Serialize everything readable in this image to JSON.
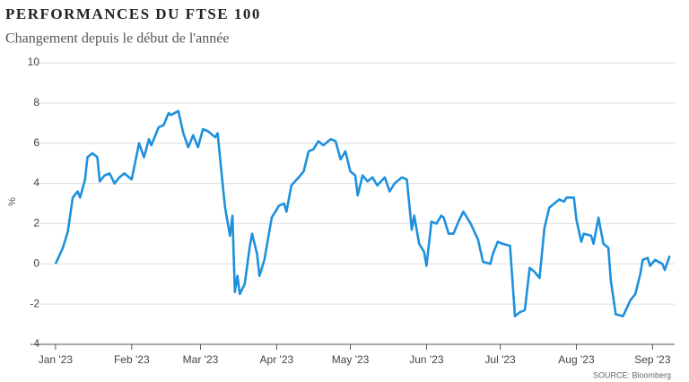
{
  "chart_data": {
    "type": "line",
    "title": "PERFORMANCES DU FTSE 100",
    "subtitle": "Changement depuis le début de l'année",
    "y_label": "%",
    "source": "SOURCE: Bloomberg",
    "x": [
      0,
      3,
      5,
      7,
      9,
      10,
      12,
      13,
      15,
      17,
      18,
      20,
      22,
      24,
      26,
      28,
      31,
      34,
      36,
      38,
      39,
      42,
      44,
      46,
      47,
      50,
      52,
      54,
      56,
      58,
      60,
      62,
      65,
      66,
      68,
      69,
      71,
      72,
      73,
      74,
      75,
      77,
      79,
      80,
      82,
      83,
      85,
      88,
      91,
      93,
      94,
      96,
      99,
      101,
      103,
      105,
      107,
      109,
      112,
      114,
      116,
      118,
      120,
      122,
      123,
      125,
      127,
      129,
      131,
      134,
      136,
      138,
      141,
      143,
      145,
      146,
      148,
      150,
      151,
      153,
      155,
      157,
      158,
      160,
      162,
      164,
      166,
      169,
      172,
      174,
      177,
      178,
      180,
      182,
      185,
      187,
      189,
      191,
      193,
      195,
      197,
      199,
      201,
      203,
      205,
      207,
      208,
      211,
      212,
      214,
      215,
      218,
      219,
      221,
      223,
      225,
      226,
      228,
      231,
      234,
      236,
      238,
      239,
      241,
      242,
      244,
      247,
      248,
      250
    ],
    "series": [
      {
        "name": "FTSE 100",
        "color": "#1e90dc",
        "values": [
          0,
          0.8,
          1.6,
          3.3,
          3.6,
          3.3,
          4.2,
          5.3,
          5.5,
          5.3,
          4.1,
          4.4,
          4.5,
          4.0,
          4.3,
          4.5,
          4.2,
          6.0,
          5.3,
          6.2,
          5.9,
          6.8,
          6.9,
          7.5,
          7.4,
          7.6,
          6.5,
          5.8,
          6.4,
          5.8,
          6.7,
          6.6,
          6.3,
          6.5,
          4.0,
          2.8,
          1.4,
          2.4,
          -1.4,
          -0.6,
          -1.5,
          -1.0,
          0.8,
          1.5,
          0.5,
          -0.6,
          0.2,
          2.3,
          2.9,
          3.0,
          2.6,
          3.9,
          4.3,
          4.6,
          5.6,
          5.7,
          6.1,
          5.9,
          6.2,
          6.1,
          5.2,
          5.6,
          4.6,
          4.4,
          3.4,
          4.4,
          4.1,
          4.3,
          3.9,
          4.3,
          3.6,
          4.0,
          4.3,
          4.2,
          1.7,
          2.4,
          1.0,
          0.6,
          -0.1,
          2.1,
          2.0,
          2.4,
          2.3,
          1.5,
          1.5,
          2.1,
          2.6,
          2.0,
          1.2,
          0.1,
          0.0,
          0.5,
          1.1,
          1.0,
          0.9,
          -2.6,
          -2.4,
          -2.3,
          -0.2,
          -0.4,
          -0.7,
          1.8,
          2.8,
          3.0,
          3.2,
          3.1,
          3.3,
          3.3,
          2.2,
          1.1,
          1.5,
          1.4,
          1.0,
          2.3,
          1.0,
          0.8,
          -0.8,
          -2.5,
          -2.6,
          -1.8,
          -1.5,
          -0.5,
          0.2,
          0.3,
          -0.1,
          0.2,
          0.0,
          -0.3,
          0.4
        ]
      }
    ],
    "xlim": [
      -8,
      252
    ],
    "xticks": [
      {
        "value": 0,
        "label": "Jan '23"
      },
      {
        "value": 31,
        "label": "Feb '23"
      },
      {
        "value": 59,
        "label": "Mar '23"
      },
      {
        "value": 90,
        "label": "Apr '23"
      },
      {
        "value": 120,
        "label": "May '23"
      },
      {
        "value": 151,
        "label": "Jun '23"
      },
      {
        "value": 181,
        "label": "Jul '23"
      },
      {
        "value": 212,
        "label": "Aug '23"
      },
      {
        "value": 243,
        "label": "Sep '23"
      }
    ],
    "ylim": [
      -4,
      10
    ],
    "yticks": [
      -4,
      -2,
      0,
      2,
      4,
      6,
      8,
      10
    ],
    "grid": true
  }
}
